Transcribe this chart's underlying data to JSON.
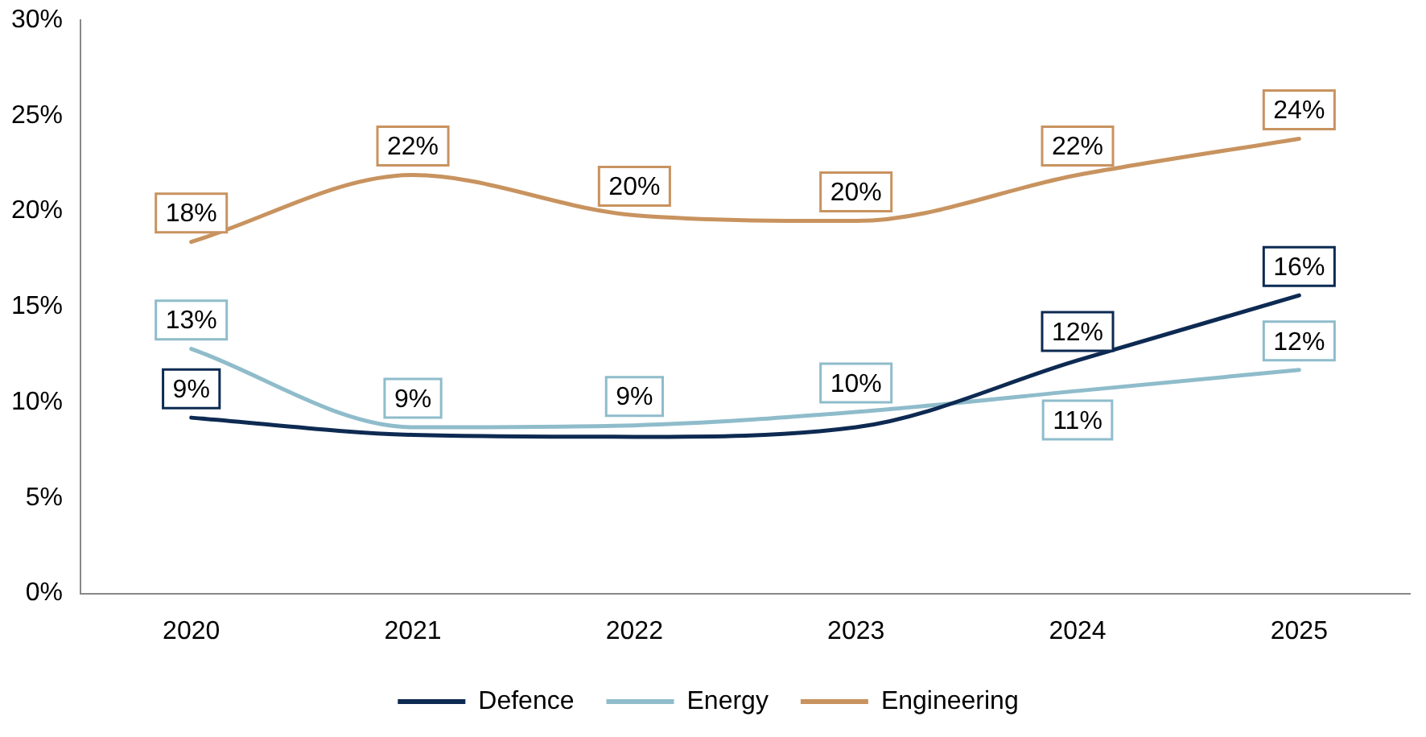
{
  "chart_data": {
    "type": "line",
    "categories": [
      "2020",
      "2021",
      "2022",
      "2023",
      "2024",
      "2025"
    ],
    "series": [
      {
        "name": "Defence",
        "color": "#0d2a52",
        "values": [
          9.2,
          8.3,
          8.2,
          8.7,
          12.2,
          15.6
        ],
        "value_labels": [
          "9%",
          null,
          null,
          null,
          "12%",
          "16%"
        ]
      },
      {
        "name": "Energy",
        "color": "#8fbccb",
        "values": [
          12.8,
          8.7,
          8.8,
          9.5,
          10.6,
          11.7
        ],
        "value_labels": [
          "13%",
          "9%",
          "9%",
          "10%",
          "11%",
          "12%"
        ]
      },
      {
        "name": "Engineering",
        "color": "#c8935f",
        "values": [
          18.4,
          21.9,
          19.8,
          19.5,
          21.9,
          23.8
        ],
        "value_labels": [
          "18%",
          "22%",
          "20%",
          "20%",
          "22%",
          "24%"
        ]
      }
    ],
    "ylim": [
      0,
      30
    ],
    "yticks": [
      {
        "value": 0,
        "label": "0%"
      },
      {
        "value": 5,
        "label": "5%"
      },
      {
        "value": 10,
        "label": "10%"
      },
      {
        "value": 15,
        "label": "15%"
      },
      {
        "value": 20,
        "label": "20%"
      },
      {
        "value": 25,
        "label": "25%"
      },
      {
        "value": 30,
        "label": "30%"
      }
    ],
    "grid": false,
    "legend": "bottom",
    "line_style": "solid"
  }
}
